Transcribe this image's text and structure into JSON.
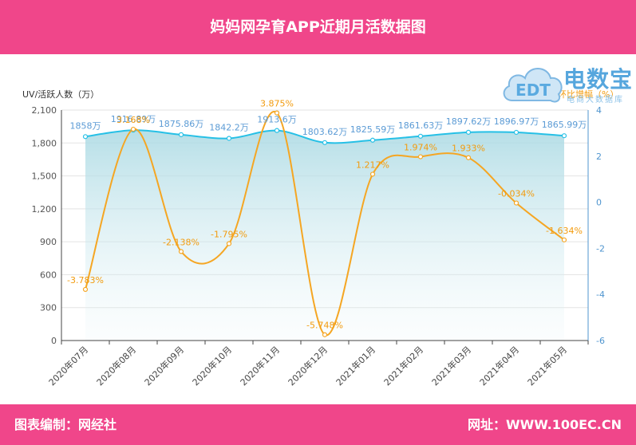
{
  "header": {
    "title": "妈妈网孕育APP近期月活数据图"
  },
  "footer": {
    "left": "图表编制：网经社",
    "right": "网址：WWW.100EC.CN"
  },
  "watermark": {
    "brand_cn": "电数宝",
    "brand_sub": "电商大数据库"
  },
  "colors": {
    "header_bg": "#f0468a",
    "uv_line": "#26c0e6",
    "uv_label": "#5b9bd5",
    "growth_line": "#f5a623",
    "growth_label": "#f29b0e",
    "right_axis": "#4f95cf"
  },
  "chart_data": {
    "type": "line",
    "categories": [
      "2020年07月",
      "2020年08月",
      "2020年09月",
      "2020年10月",
      "2020年11月",
      "2020年12月",
      "2021年01月",
      "2021年02月",
      "2021年03月",
      "2021年04月",
      "2021年05月"
    ],
    "ylabel": "UV/活跃人数（万）",
    "y2label": "环比增幅（%）",
    "ylim": [
      0,
      2100
    ],
    "yticks": [
      "0",
      "300",
      "600",
      "900",
      "1,200",
      "1,500",
      "1,800",
      "2,100"
    ],
    "y2lim": [
      -6,
      4
    ],
    "y2ticks": [
      "-6",
      "-4",
      "-2",
      "0",
      "2",
      "4"
    ],
    "series": [
      {
        "axis": "left",
        "values": [
          1858,
          1916.89,
          1875.86,
          1842.2,
          1913.6,
          1803.62,
          1825.59,
          1861.63,
          1897.62,
          1896.97,
          1865.99
        ],
        "labels": [
          "1858万",
          "1916.89万",
          "1875.86万",
          "1842.2万",
          "1913.6万",
          "1803.62万",
          "1825.59万",
          "1861.63万",
          "1897.62万",
          "1896.97万",
          "1865.99万"
        ]
      },
      {
        "axis": "right",
        "values": [
          -3.783,
          3.168,
          -2.138,
          -1.795,
          3.875,
          -5.748,
          1.217,
          1.974,
          1.933,
          -0.034,
          -1.634
        ],
        "labels": [
          "-3.783%",
          "3.168%",
          "-2.138%",
          "-1.795%",
          "3.875%",
          "-5.748%",
          "1.217%",
          "1.974%",
          "1.933%",
          "-0.034%",
          "-1.634%"
        ]
      }
    ],
    "grid": true
  }
}
